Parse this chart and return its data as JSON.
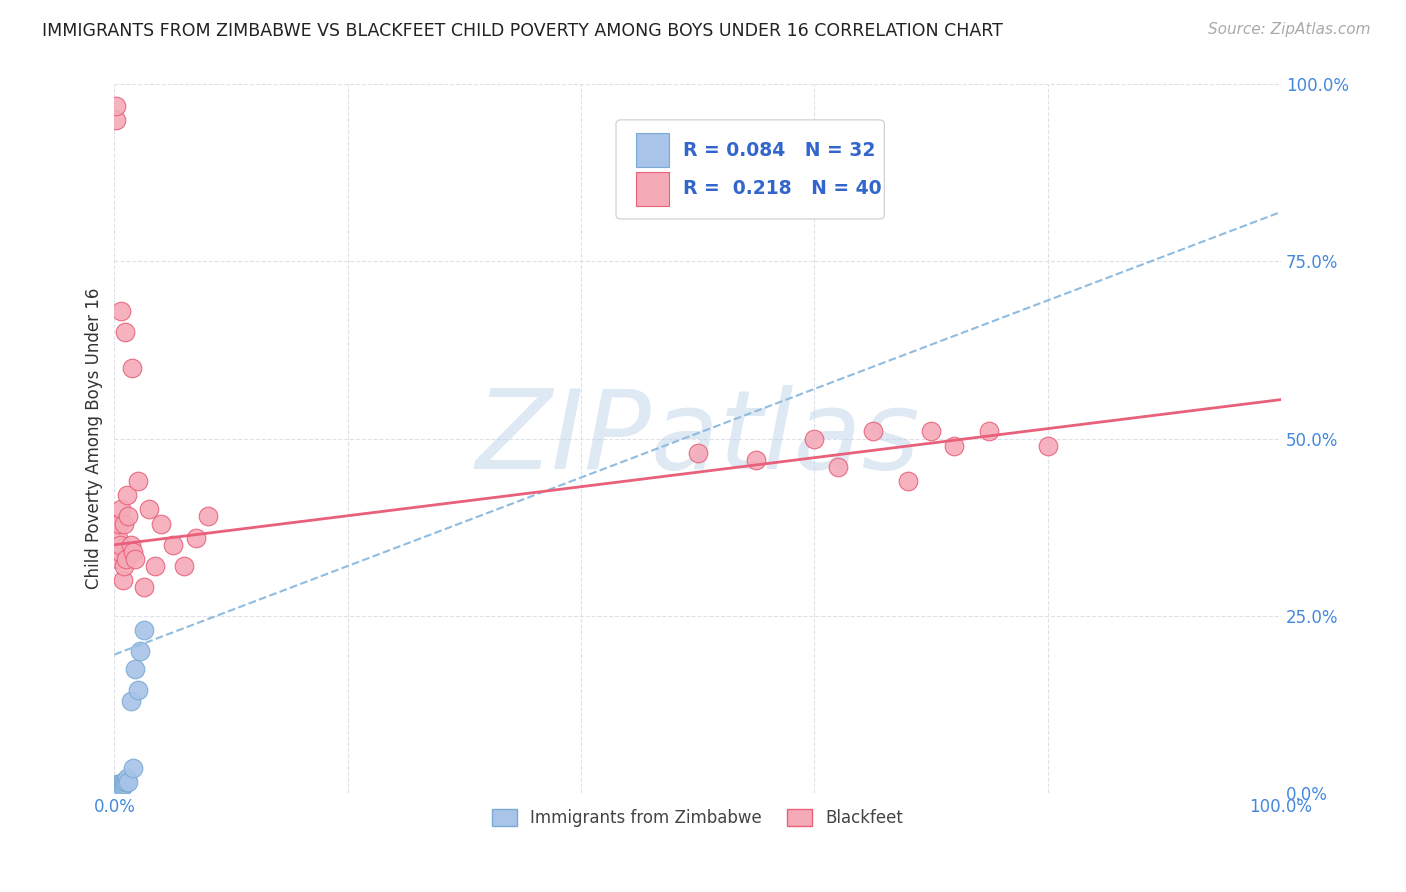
{
  "title": "IMMIGRANTS FROM ZIMBABWE VS BLACKFEET CHILD POVERTY AMONG BOYS UNDER 16 CORRELATION CHART",
  "source": "Source: ZipAtlas.com",
  "ylabel": "Child Poverty Among Boys Under 16",
  "xlim": [
    0,
    1
  ],
  "ylim": [
    0,
    1
  ],
  "watermark": "ZIPatlas",
  "legend_label1": "Immigrants from Zimbabwe",
  "legend_label2": "Blackfeet",
  "R1": "0.084",
  "N1": "32",
  "R2": "0.218",
  "N2": "40",
  "blue_fill": "#a8c4e8",
  "pink_fill": "#f5aab8",
  "blue_edge": "#7aaad4",
  "pink_edge": "#e8607a",
  "blue_line_color": "#90bce0",
  "pink_line_color": "#e8607a",
  "title_color": "#222222",
  "source_color": "#aaaaaa",
  "legend_r_color": "#3366cc",
  "grid_color": "#e0e0e8",
  "blue_x": [
    0.001,
    0.001,
    0.001,
    0.001,
    0.001,
    0.002,
    0.002,
    0.002,
    0.002,
    0.003,
    0.003,
    0.003,
    0.004,
    0.004,
    0.005,
    0.005,
    0.005,
    0.006,
    0.006,
    0.007,
    0.007,
    0.008,
    0.009,
    0.01,
    0.011,
    0.012,
    0.014,
    0.016,
    0.018,
    0.02,
    0.022,
    0.025
  ],
  "blue_y": [
    0.002,
    0.004,
    0.006,
    0.008,
    0.01,
    0.003,
    0.005,
    0.008,
    0.012,
    0.004,
    0.007,
    0.01,
    0.006,
    0.01,
    0.005,
    0.008,
    0.012,
    0.007,
    0.012,
    0.01,
    0.015,
    0.012,
    0.015,
    0.015,
    0.02,
    0.015,
    0.13,
    0.035,
    0.175,
    0.145,
    0.2,
    0.23
  ],
  "pink_x": [
    0.001,
    0.001,
    0.002,
    0.003,
    0.003,
    0.004,
    0.005,
    0.005,
    0.006,
    0.006,
    0.007,
    0.008,
    0.008,
    0.009,
    0.01,
    0.011,
    0.012,
    0.014,
    0.015,
    0.016,
    0.018,
    0.02,
    0.025,
    0.03,
    0.035,
    0.04,
    0.05,
    0.06,
    0.07,
    0.08,
    0.5,
    0.55,
    0.6,
    0.62,
    0.65,
    0.68,
    0.7,
    0.72,
    0.75,
    0.8
  ],
  "pink_y": [
    0.95,
    0.97,
    0.38,
    0.33,
    0.36,
    0.38,
    0.34,
    0.35,
    0.4,
    0.68,
    0.3,
    0.38,
    0.32,
    0.65,
    0.33,
    0.42,
    0.39,
    0.35,
    0.6,
    0.34,
    0.33,
    0.44,
    0.29,
    0.4,
    0.32,
    0.38,
    0.35,
    0.32,
    0.36,
    0.39,
    0.48,
    0.47,
    0.5,
    0.46,
    0.51,
    0.44,
    0.51,
    0.49,
    0.51,
    0.49
  ],
  "blue_trend_start": 0.195,
  "blue_trend_end": 0.82,
  "pink_trend_start": 0.35,
  "pink_trend_end": 0.555
}
